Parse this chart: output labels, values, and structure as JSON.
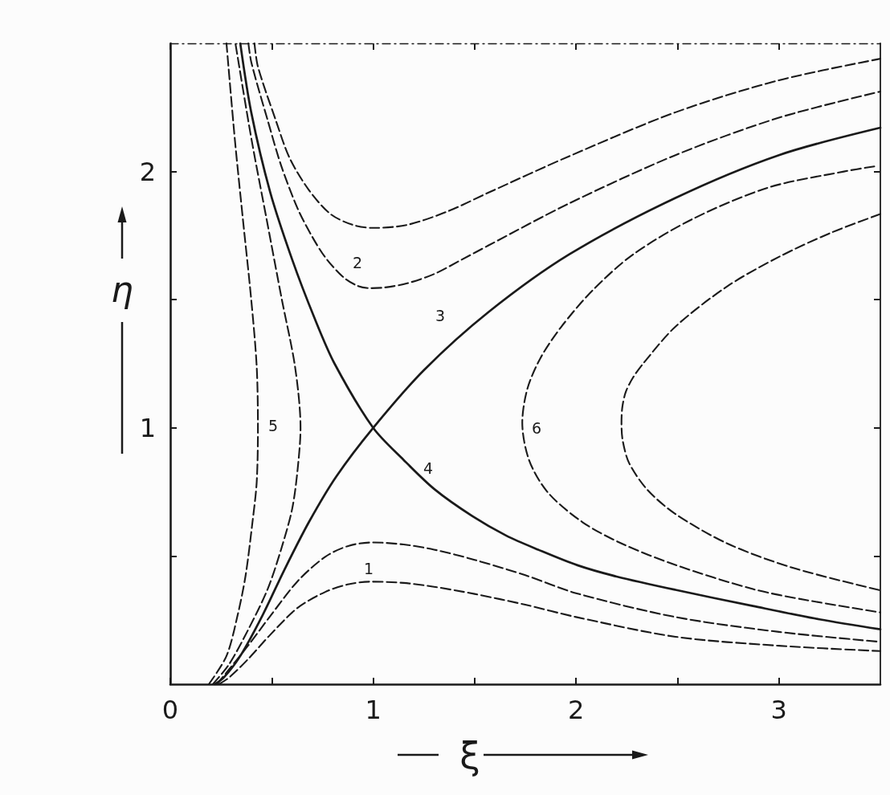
{
  "chart_data": {
    "type": "line",
    "xlabel": "ξ",
    "ylabel": "η",
    "xlim": [
      0,
      3.5
    ],
    "ylim": [
      0,
      2.5
    ],
    "xticks": [
      0,
      {
        "value": 0.5,
        "label": null
      },
      1,
      {
        "value": 1.5,
        "label": null
      },
      2,
      {
        "value": 2.5,
        "label": null
      },
      3
    ],
    "yticks": [
      {
        "value": 0.5,
        "label": null
      },
      1,
      {
        "value": 1.5,
        "label": null
      },
      2
    ],
    "grid": false,
    "marker": "none",
    "annotations": [
      "1",
      "2",
      "3",
      "4",
      "5",
      "6"
    ],
    "series": [
      {
        "color": "#1a1a1a",
        "line_style": "dashed",
        "x": [
          0.24,
          0.29,
          0.385,
          0.493,
          0.628,
          0.764,
          0.88,
          0.985,
          1.15,
          1.3,
          1.5,
          1.75,
          2.0,
          2.49,
          3.0,
          3.5
        ],
        "values": [
          0.0,
          0.026,
          0.099,
          0.193,
          0.298,
          0.36,
          0.39,
          0.4,
          0.395,
          0.38,
          0.352,
          0.31,
          0.262,
          0.185,
          0.15,
          0.129
        ]
      },
      {
        "color": "#1a1a1a",
        "line_style": "dashed",
        "x": [
          0.23,
          0.29,
          0.385,
          0.493,
          0.628,
          0.764,
          0.88,
          1.0,
          1.15,
          1.3,
          1.5,
          1.75,
          2.0,
          2.49,
          3.0,
          3.5
        ],
        "values": [
          0.0,
          0.058,
          0.152,
          0.266,
          0.402,
          0.497,
          0.54,
          0.553,
          0.545,
          0.525,
          0.485,
          0.425,
          0.355,
          0.262,
          0.204,
          0.165
        ]
      },
      {
        "color": "#1a1a1a",
        "line_style": "dashed",
        "x": [
          0.385,
          0.4,
          0.48,
          0.547,
          0.628,
          0.7,
          0.764,
          0.85,
          0.92,
          0.985,
          1.06,
          1.168,
          1.3,
          1.436,
          1.569,
          1.967,
          2.49,
          3.0,
          3.5
        ],
        "values": [
          2.5,
          2.424,
          2.2,
          2.022,
          1.855,
          1.745,
          1.665,
          1.59,
          1.555,
          1.545,
          1.548,
          1.564,
          1.6,
          1.656,
          1.712,
          1.876,
          2.064,
          2.21,
          2.312
        ]
      },
      {
        "color": "#1a1a1a",
        "line_style": "dashed",
        "x": [
          0.415,
          0.432,
          0.52,
          0.588,
          0.683,
          0.79,
          0.899,
          1.0,
          1.168,
          1.369,
          1.569,
          1.967,
          2.49,
          3.0,
          3.5
        ],
        "values": [
          2.5,
          2.409,
          2.2,
          2.053,
          1.928,
          1.834,
          1.792,
          1.78,
          1.792,
          1.845,
          1.918,
          2.06,
          2.231,
          2.356,
          2.44
        ]
      },
      {
        "color": "#1a1a1a",
        "line_style": "solid",
        "x": [
          0.22,
          0.264,
          0.345,
          0.453,
          0.561,
          0.683,
          0.818,
          1.0,
          1.25,
          1.569,
          1.967,
          2.49,
          3.0,
          3.5
        ],
        "values": [
          0.0,
          0.026,
          0.11,
          0.266,
          0.444,
          0.632,
          0.81,
          1.0,
          1.225,
          1.452,
          1.677,
          1.897,
          2.064,
          2.171
        ]
      },
      {
        "color": "#1a1a1a",
        "line_style": "solid",
        "x": [
          0.345,
          0.399,
          0.493,
          0.601,
          0.71,
          0.81,
          1.0,
          1.15,
          1.303,
          1.49,
          1.655,
          1.813,
          2.007,
          2.2,
          2.49,
          2.872,
          3.2,
          3.5
        ],
        "values": [
          2.5,
          2.231,
          1.918,
          1.656,
          1.43,
          1.25,
          1.0,
          0.875,
          0.76,
          0.655,
          0.58,
          0.525,
          0.464,
          0.42,
          0.368,
          0.305,
          0.253,
          0.214
        ]
      },
      {
        "color": "#1a1a1a",
        "line_style": "dashed",
        "x": [
          0.19,
          0.277,
          0.331,
          0.371,
          0.405,
          0.426,
          0.432,
          0.426,
          0.399,
          0.358,
          0.318,
          0.277
        ],
        "values": [
          0.0,
          0.11,
          0.266,
          0.423,
          0.632,
          0.789,
          1.0,
          1.238,
          1.5,
          1.813,
          2.127,
          2.5
        ]
      },
      {
        "color": "#1a1a1a",
        "line_style": "dashed",
        "x": [
          0.21,
          0.29,
          0.385,
          0.48,
          0.547,
          0.601,
          0.628,
          0.642,
          0.615,
          0.55,
          0.475,
          0.4,
          0.321
        ],
        "values": [
          0.0,
          0.078,
          0.214,
          0.371,
          0.528,
          0.685,
          0.841,
          1.0,
          1.238,
          1.5,
          1.813,
          2.127,
          2.5
        ]
      },
      {
        "color": "#1a1a1a",
        "line_style": "dashed",
        "x": [
          3.47,
          3.32,
          2.95,
          2.58,
          2.28,
          2.08,
          1.927,
          1.825,
          1.76,
          1.735,
          1.769,
          1.862,
          2.032,
          2.224,
          2.49,
          2.872,
          3.129,
          3.5
        ],
        "values": [
          2.02,
          2.0,
          1.938,
          1.817,
          1.676,
          1.535,
          1.394,
          1.273,
          1.152,
          1.02,
          0.873,
          0.747,
          0.632,
          0.549,
          0.465,
          0.371,
          0.329,
          0.28
        ]
      },
      {
        "color": "#1a1a1a",
        "line_style": "dashed",
        "x": [
          3.5,
          3.256,
          3.0,
          2.745,
          2.49,
          2.33,
          2.28,
          2.245,
          2.228,
          2.224,
          2.23,
          2.262,
          2.352,
          2.49,
          2.745,
          3.064,
          3.5
        ],
        "values": [
          1.834,
          1.761,
          1.667,
          1.552,
          1.395,
          1.25,
          1.195,
          1.14,
          1.08,
          1.019,
          0.95,
          0.862,
          0.758,
          0.664,
          0.549,
          0.455,
          0.366
        ]
      }
    ]
  }
}
